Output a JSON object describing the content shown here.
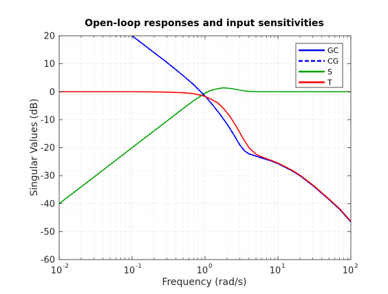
{
  "chart_data": {
    "type": "line",
    "title": "Open-loop responses and input sensitivities",
    "xlabel": "Frequency (rad/s)",
    "ylabel": "Singular Values (dB)",
    "xscale": "log",
    "xlim": [
      0.01,
      100
    ],
    "ylim": [
      -60,
      20
    ],
    "xticks": [
      {
        "base": "10",
        "exp": "-2"
      },
      {
        "base": "10",
        "exp": "-1"
      },
      {
        "base": "10",
        "exp": "0"
      },
      {
        "base": "10",
        "exp": "1"
      },
      {
        "base": "10",
        "exp": "2"
      }
    ],
    "yticks": [
      "20",
      "10",
      "0",
      "-10",
      "-20",
      "-30",
      "-40",
      "-50",
      "-60"
    ],
    "grid": true,
    "minor_grid": true,
    "legend_position": "top-right",
    "series": [
      {
        "name": "GC",
        "color": "#0000ff",
        "linestyle": "solid",
        "x": [
          0.1,
          0.2,
          0.3,
          0.5,
          0.7,
          1.0,
          1.3,
          1.6,
          2.0,
          2.5,
          3.0,
          3.5,
          4.0,
          5.0,
          6.0,
          8.0,
          10,
          15,
          20,
          30,
          50,
          70,
          100
        ],
        "y": [
          20,
          14,
          10.5,
          5.8,
          2.5,
          -1.5,
          -5,
          -8,
          -11.5,
          -15.5,
          -19,
          -21.2,
          -22.2,
          -23,
          -23.7,
          -24.7,
          -25.7,
          -28,
          -30,
          -33.5,
          -38.5,
          -42,
          -46.5
        ]
      },
      {
        "name": "CG",
        "color": "#0000ff",
        "linestyle": "dashed",
        "x": [
          0.1,
          0.2,
          0.3,
          0.5,
          0.7,
          1.0,
          1.3,
          1.6,
          2.0,
          2.5,
          3.0,
          3.5,
          4.0,
          5.0,
          6.0,
          8.0,
          10,
          15,
          20,
          30,
          50,
          70,
          100
        ],
        "y": [
          20,
          14,
          10.5,
          5.8,
          2.5,
          -1.5,
          -5,
          -8,
          -11.5,
          -15.5,
          -19,
          -21.2,
          -22.2,
          -23,
          -23.7,
          -24.7,
          -25.7,
          -28,
          -30,
          -33.5,
          -38.5,
          -42,
          -46.5
        ]
      },
      {
        "name": "S",
        "color": "#00a000",
        "linestyle": "solid",
        "x": [
          0.01,
          0.03,
          0.1,
          0.3,
          0.5,
          0.7,
          0.9,
          1.0,
          1.2,
          1.5,
          1.8,
          2.2,
          2.7,
          3.3,
          4.0,
          5.0,
          7.0,
          10,
          30,
          100
        ],
        "y": [
          -40,
          -30.5,
          -20,
          -10.5,
          -6,
          -3.2,
          -1.3,
          -0.5,
          0.5,
          1.1,
          1.4,
          1.2,
          0.8,
          0.4,
          0.15,
          0,
          0,
          0,
          0,
          0
        ]
      },
      {
        "name": "T",
        "color": "#ff0000",
        "linestyle": "solid",
        "x": [
          0.01,
          0.1,
          0.2,
          0.3,
          0.5,
          0.7,
          0.9,
          1.0,
          1.2,
          1.5,
          1.8,
          2.2,
          2.7,
          3.3,
          4.0,
          5.0,
          6.0,
          8.0,
          10,
          15,
          20,
          30,
          50,
          70,
          100
        ],
        "y": [
          0,
          0,
          -0.05,
          -0.15,
          -0.35,
          -0.7,
          -1.3,
          -1.7,
          -2.6,
          -4.0,
          -6.0,
          -8.8,
          -12.5,
          -16.5,
          -20.0,
          -22.3,
          -23.3,
          -24.5,
          -25.5,
          -27.8,
          -29.8,
          -33.3,
          -38.3,
          -41.8,
          -46.3
        ]
      }
    ]
  }
}
